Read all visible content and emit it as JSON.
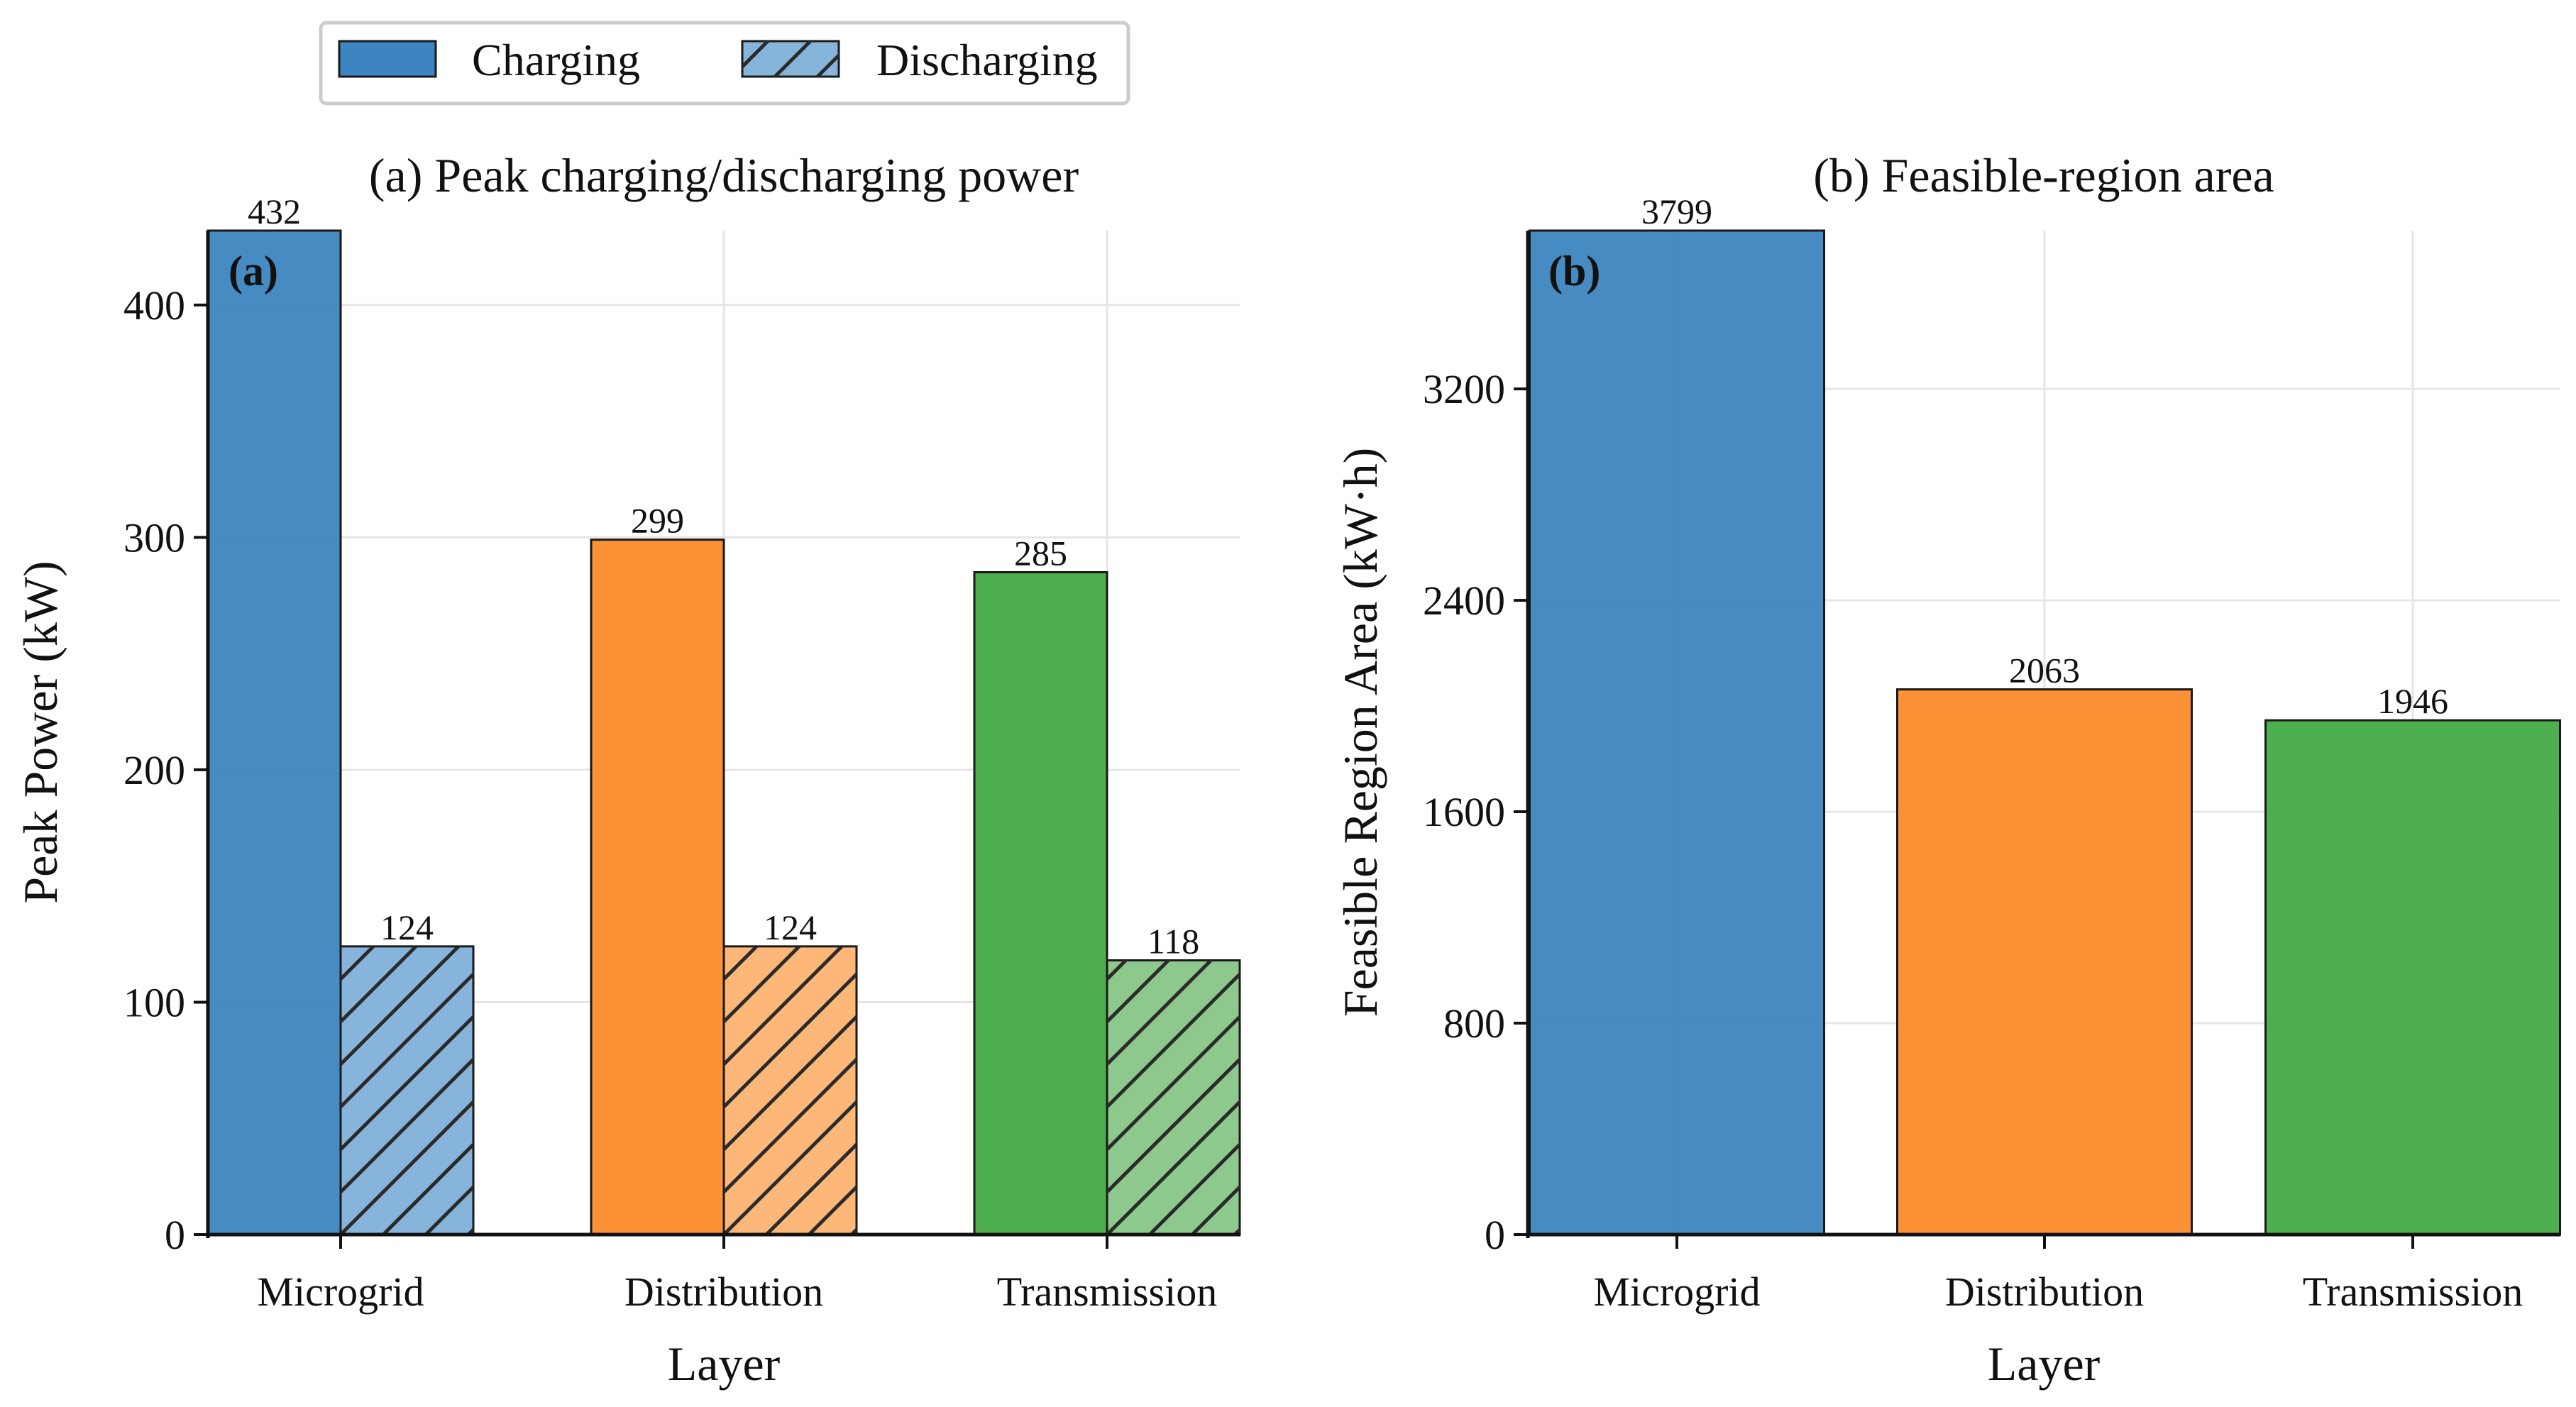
{
  "legend": {
    "items": [
      {
        "label": "Charging",
        "style": "solid"
      },
      {
        "label": "Discharging",
        "style": "hatched"
      }
    ]
  },
  "colors": {
    "microgrid": "#3d85c0",
    "microgrid_light": "#86b4da",
    "distribution": "#fd8b2a",
    "distribution_light": "#fdb778",
    "transmission": "#45ab45",
    "transmission_light": "#8dc98d",
    "edge": "#1a1a1a",
    "grid": "#e6e6e6"
  },
  "chart_data": [
    {
      "type": "bar",
      "panel_tag": "(a)",
      "title": "(a) Peak charging/discharging power",
      "xlabel": "Layer",
      "ylabel": "Peak Power (kW)",
      "categories": [
        "Microgrid",
        "Distribution",
        "Transmission"
      ],
      "series": [
        {
          "name": "Charging",
          "values": [
            432,
            299,
            285
          ],
          "hatch": false
        },
        {
          "name": "Discharging",
          "values": [
            124,
            124,
            118
          ],
          "hatch": true
        }
      ],
      "ylim": [
        0,
        432
      ],
      "yticks": [
        0,
        100,
        200,
        300,
        400
      ],
      "grid": true,
      "legend_position": "top"
    },
    {
      "type": "bar",
      "panel_tag": "(b)",
      "title": "(b) Feasible-region area",
      "xlabel": "Layer",
      "ylabel": "Feasible Region Area (kW·h)",
      "categories": [
        "Microgrid",
        "Distribution",
        "Transmission"
      ],
      "series": [
        {
          "values": [
            3799,
            2063,
            1946
          ]
        }
      ],
      "ylim": [
        0,
        3799
      ],
      "yticks": [
        0,
        800,
        1600,
        2400,
        3200
      ],
      "grid": true
    }
  ]
}
